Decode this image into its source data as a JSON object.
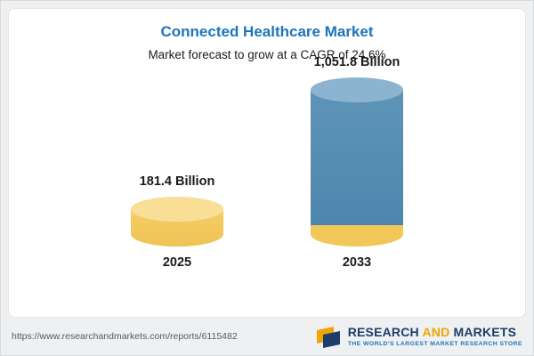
{
  "chart_data": {
    "type": "bar",
    "title": "Connected Healthcare Market",
    "subtitle": "Market forecast to grow at a CAGR of 24.6%",
    "categories": [
      "2025",
      "2033"
    ],
    "values": [
      181.4,
      1051.8
    ],
    "value_labels": [
      "181.4 Billion",
      "1,051.8 Billion"
    ],
    "unit": "Billion (USD)",
    "xlabel": "",
    "ylabel": "",
    "legend": "none",
    "grid": false,
    "colors": {
      "bar_2025": "#f2c759",
      "bar_2033": "#4d86ad",
      "bar_2033_base": "#f2c759",
      "title": "#1c75bc"
    }
  },
  "footer": {
    "url": "https://www.researchandmarkets.com/reports/6115482",
    "logo": {
      "word1": "RESEARCH",
      "word2": "AND",
      "word3": "MARKETS",
      "tagline": "THE WORLD'S LARGEST MARKET RESEARCH STORE"
    }
  }
}
